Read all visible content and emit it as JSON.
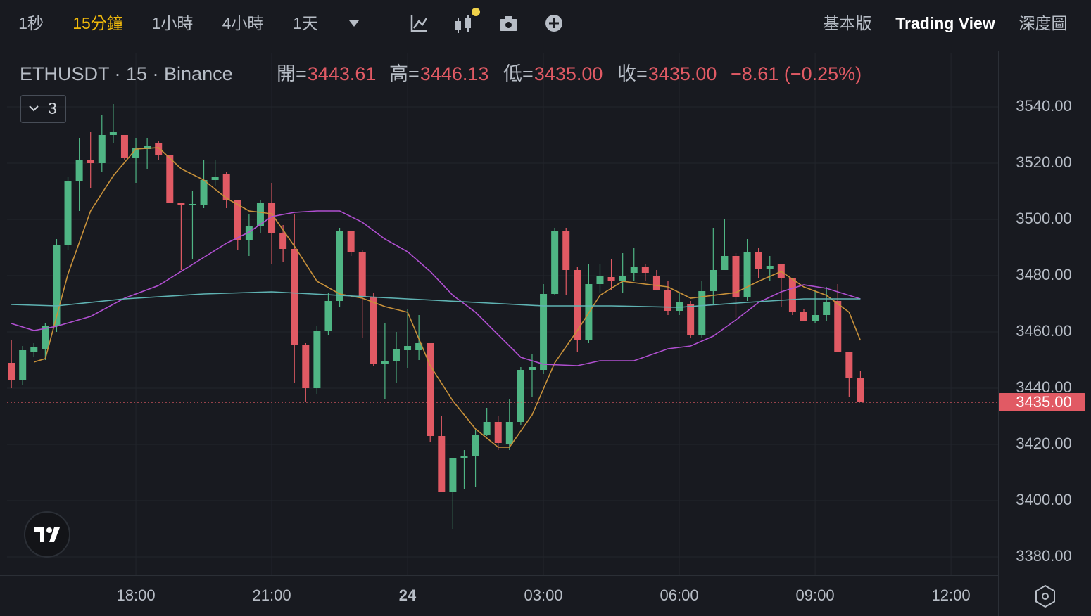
{
  "toolbar": {
    "intervals": [
      "1秒",
      "15分鐘",
      "1小時",
      "4小時",
      "1天"
    ],
    "active": 1,
    "views": [
      "基本版",
      "Trading View",
      "深度圖"
    ],
    "active_view": 1
  },
  "chart_data": {
    "type": "candlestick",
    "legend": {
      "symbol": "ETHUSDT · 15 · Binance",
      "items": [
        {
          "label": "開=",
          "value": "3443.61"
        },
        {
          "label": "高=",
          "value": "3446.13"
        },
        {
          "label": "低=",
          "value": "3435.00"
        },
        {
          "label": "收=",
          "value": "3435.00"
        }
      ],
      "change": "−8.61 (−0.25%)",
      "indicators": "3"
    },
    "up_color": "#4fb584",
    "down_color": "#e15a64",
    "x": [
      15.25,
      15.5,
      15.75,
      16,
      16.25,
      16.5,
      16.75,
      17,
      17.25,
      17.5,
      17.75,
      18,
      18.25,
      18.5,
      18.75,
      19,
      19.25,
      19.5,
      19.75,
      20,
      20.25,
      20.5,
      20.75,
      21,
      21.25,
      21.5,
      21.75,
      22,
      22.25,
      22.5,
      22.75,
      23,
      23.25,
      23.5,
      23.75,
      24,
      24.25,
      24.5,
      24.75,
      25,
      25.25,
      25.5,
      25.75,
      26,
      26.25,
      26.5,
      26.75,
      27,
      27.25,
      27.5,
      27.75,
      28,
      28.25,
      28.5,
      28.75,
      29,
      29.25,
      29.5,
      29.75,
      30,
      30.25,
      30.5,
      30.75,
      31,
      31.25,
      31.5,
      31.75,
      32,
      32.25,
      32.5,
      32.75,
      33,
      33.25,
      33.5,
      33.75,
      34
    ],
    "open": [
      3449,
      3443,
      3453,
      3454,
      3462,
      3491,
      3513.5,
      3521,
      3520,
      3530,
      3530,
      3522,
      3525,
      3527,
      3523,
      3506,
      3505,
      3505,
      3514,
      3516,
      3507,
      3492.5,
      3497.5,
      3506,
      3495,
      3489.5,
      3455.5,
      3440,
      3460.5,
      3471,
      3496,
      3488.5,
      3472.5,
      3448.5,
      3449.5,
      3453.5,
      3453.5,
      3456,
      3423,
      3403,
      3415,
      3416,
      3423.5,
      3428,
      3420,
      3428,
      3446.5,
      3446.5,
      3473.5,
      3496,
      3482,
      3457,
      3477,
      3479.5,
      3478,
      3481,
      3483,
      3480,
      3475,
      3467.5,
      3470,
      3459,
      3474.5,
      3482,
      3487,
      3472.5,
      3488.5,
      3482.5,
      3484,
      3479,
      3467,
      3464,
      3466,
      3471,
      3453,
      3443.61
    ],
    "high": [
      3457,
      3455,
      3456,
      3463,
      3493,
      3515,
      3529,
      3531,
      3537,
      3541,
      3530,
      3529,
      3529,
      3528,
      3523,
      3506,
      3510,
      3521,
      3521,
      3517,
      3507,
      3502,
      3507,
      3513,
      3498,
      3502,
      3456,
      3462,
      3474,
      3497,
      3496,
      3489,
      3474,
      3463,
      3460,
      3468,
      3466,
      3456,
      3430,
      3415,
      3418,
      3425,
      3433,
      3430,
      3436,
      3447.5,
      3452,
      3477,
      3497,
      3497,
      3483,
      3484,
      3484,
      3486,
      3488,
      3490,
      3484,
      3482,
      3478,
      3474,
      3471,
      3478,
      3497,
      3500,
      3488,
      3493,
      3490,
      3487,
      3484,
      3479,
      3468,
      3475,
      3476,
      3477,
      3453,
      3446.13
    ],
    "low": [
      3440,
      3441,
      3451,
      3450,
      3460,
      3489,
      3503,
      3511,
      3517,
      3527,
      3521,
      3513,
      3518,
      3521,
      3506,
      3482,
      3486,
      3504,
      3512,
      3504,
      3489,
      3487,
      3495,
      3484,
      3485,
      3442,
      3435,
      3438,
      3459,
      3469,
      3487,
      3458,
      3448,
      3436,
      3442,
      3447,
      3450,
      3421,
      3403,
      3390,
      3404,
      3405,
      3423,
      3418,
      3418,
      3427,
      3437,
      3445,
      3473,
      3473,
      3453,
      3456,
      3474,
      3475,
      3474,
      3478,
      3478,
      3475,
      3466,
      3466,
      3458,
      3458,
      3470,
      3482,
      3465,
      3471,
      3479,
      3478,
      3469,
      3466,
      3464,
      3463,
      3464,
      3453,
      3437,
      3435
    ],
    "close": [
      3443,
      3453.5,
      3454.5,
      3462,
      3491,
      3513.5,
      3521,
      3520,
      3530,
      3531,
      3522,
      3525.5,
      3526,
      3523,
      3506,
      3505,
      3505.5,
      3514,
      3515,
      3507,
      3492.5,
      3497.5,
      3506,
      3495,
      3489.5,
      3455.5,
      3440,
      3460.5,
      3471,
      3496,
      3488.5,
      3472.5,
      3448.5,
      3449.5,
      3454,
      3455,
      3456,
      3423,
      3403,
      3415,
      3416,
      3423.5,
      3428,
      3420.5,
      3428,
      3446.5,
      3447.5,
      3473.5,
      3496,
      3482,
      3457,
      3477,
      3480,
      3478,
      3480,
      3483,
      3481,
      3475,
      3467.5,
      3470.5,
      3459,
      3474.5,
      3482,
      3487,
      3472.5,
      3488.5,
      3482.5,
      3483.5,
      3479,
      3467,
      3464,
      3466,
      3470.5,
      3453,
      3443.5,
      3435
    ],
    "lines": [
      {
        "color": "#c8913a",
        "x": [
          15.75,
          16,
          16.5,
          17,
          17.5,
          18,
          18.5,
          19,
          19.5,
          20,
          20.5,
          21,
          21.5,
          22,
          22.5,
          23,
          23.5,
          24,
          24.5,
          25,
          25.5,
          26,
          26.25,
          26.75,
          27.25,
          27.75,
          28.25,
          28.75,
          29.25,
          29.75,
          30.25,
          30.75,
          31.25,
          31.75,
          32.25,
          32.75,
          33.25,
          33.75,
          34
        ],
        "values": [
          3449.3,
          3450.5,
          3480.5,
          3503,
          3515.5,
          3525,
          3525.5,
          3518,
          3514,
          3507.5,
          3503,
          3502,
          3490.5,
          3478,
          3473.5,
          3472,
          3469,
          3467,
          3448,
          3435.5,
          3425.5,
          3419,
          3419,
          3430.5,
          3449,
          3460.5,
          3473,
          3478,
          3477,
          3476,
          3472,
          3473,
          3474,
          3478,
          3481.5,
          3476,
          3473,
          3467,
          3457
        ]
      },
      {
        "color": "#b04fd0",
        "x": [
          15.25,
          15.75,
          16.25,
          17,
          17.75,
          18.5,
          19.25,
          20,
          20.5,
          21,
          21.5,
          22,
          22.5,
          23,
          23.5,
          24,
          24.5,
          25,
          25.5,
          26,
          26.5,
          27,
          27.75,
          28.25,
          29,
          29.75,
          30.25,
          30.75,
          31.25,
          31.75,
          32.25,
          32.75,
          33.25,
          33.75,
          34
        ],
        "values": [
          3463,
          3460.5,
          3462,
          3465.5,
          3472,
          3476.5,
          3484,
          3491.5,
          3495.5,
          3501,
          3502.5,
          3503,
          3503,
          3499,
          3493,
          3488.5,
          3481.5,
          3473,
          3467,
          3459,
          3451,
          3448.5,
          3448,
          3449.75,
          3449.75,
          3454,
          3455,
          3458.5,
          3464.25,
          3470.5,
          3474.25,
          3476.75,
          3475.5,
          3473,
          3471.75
        ]
      },
      {
        "color": "#5fb3b3",
        "x": [
          15.25,
          16.25,
          17.75,
          19.5,
          21,
          22.5,
          24,
          25.5,
          27,
          28.5,
          30,
          31.5,
          32.75,
          34
        ],
        "values": [
          3469.75,
          3469.25,
          3471.75,
          3473.5,
          3474.25,
          3473,
          3471.75,
          3470.5,
          3469.25,
          3469.25,
          3468.75,
          3470.5,
          3471.75,
          3471.75
        ]
      }
    ],
    "last_price": {
      "value": 3435,
      "label": "3435.00"
    },
    "xlim": [
      15.155,
      37.04
    ],
    "xticks": [
      {
        "value": 18,
        "label": "18:00"
      },
      {
        "value": 21,
        "label": "21:00"
      },
      {
        "value": 24,
        "label": "24"
      },
      {
        "value": 27,
        "label": "03:00"
      },
      {
        "value": 30,
        "label": "06:00"
      },
      {
        "value": 33,
        "label": "09:00"
      },
      {
        "value": 36,
        "label": "12:00"
      }
    ],
    "ylim": [
      3373.5,
      3559.25
    ],
    "yticks": [
      {
        "value": 3380,
        "label": "3380.00"
      },
      {
        "value": 3400,
        "label": "3400.00"
      },
      {
        "value": 3420,
        "label": "3420.00"
      },
      {
        "value": 3440,
        "label": "3440.00"
      },
      {
        "value": 3460,
        "label": "3460.00"
      },
      {
        "value": 3480,
        "label": "3480.00"
      },
      {
        "value": 3500,
        "label": "3500.00"
      },
      {
        "value": 3520,
        "label": "3520.00"
      },
      {
        "value": 3540,
        "label": "3540.00"
      }
    ],
    "grid": true
  }
}
